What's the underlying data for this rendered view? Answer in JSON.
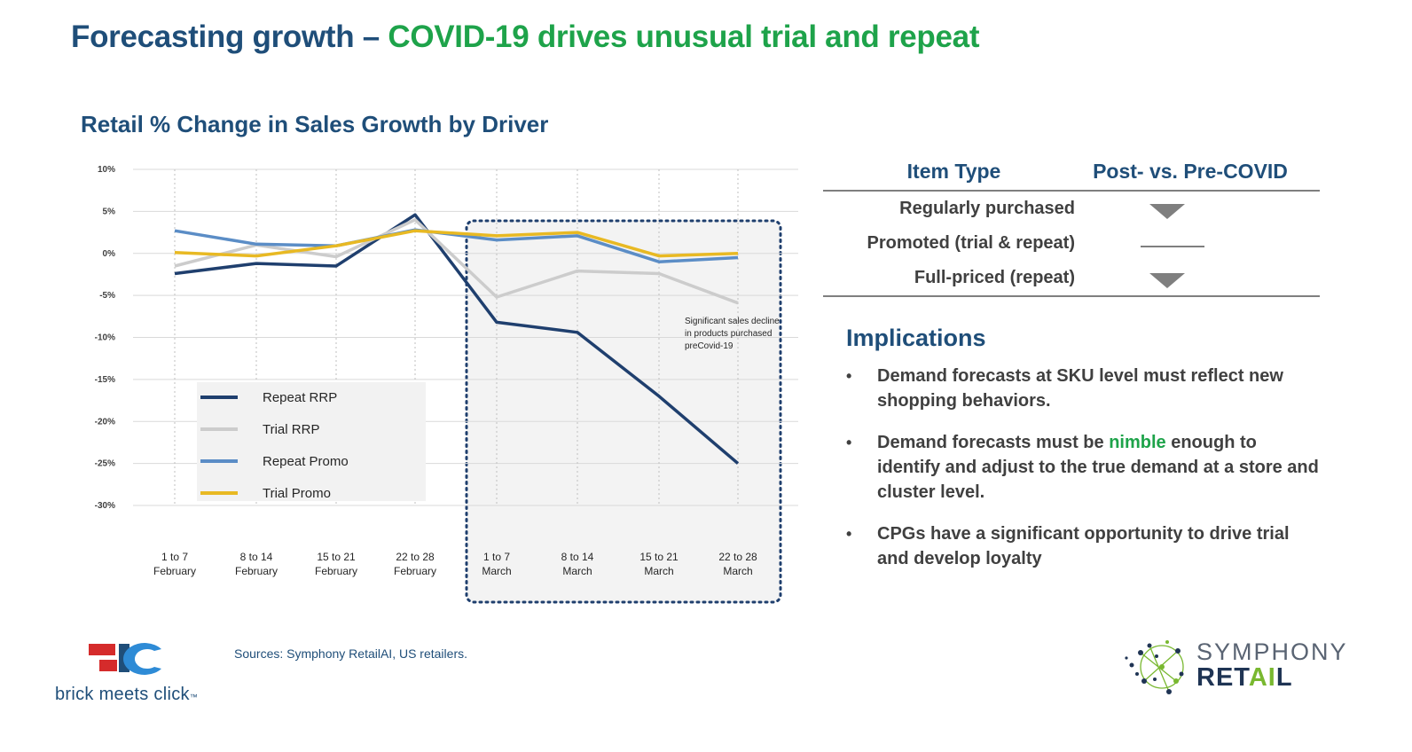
{
  "header": {
    "title_part_a": "Forecasting growth – ",
    "title_part_b": "COVID-19 drives unusual trial and repeat"
  },
  "chart_data": {
    "type": "line",
    "title": "Retail % Change in Sales Growth by Driver",
    "categories": [
      [
        "1 to 7",
        "February"
      ],
      [
        "8 to 14",
        "February"
      ],
      [
        "15 to 21",
        "February"
      ],
      [
        "22 to 28",
        "February"
      ],
      [
        "1 to 7",
        "March"
      ],
      [
        "8 to 14",
        "March"
      ],
      [
        "15 to 21",
        "March"
      ],
      [
        "22 to 28",
        "March"
      ]
    ],
    "y_ticks": [
      10,
      5,
      0,
      -5,
      -10,
      -15,
      -20,
      -25,
      -30
    ],
    "y_tick_labels": [
      "10%",
      "5%",
      "0%",
      "-5%",
      "-10%",
      "-15%",
      "-20%",
      "-25%",
      "-30%"
    ],
    "ylim": [
      -30,
      10
    ],
    "grid": true,
    "series": [
      {
        "name": "Repeat RRP",
        "color": "#1f3f6e",
        "values": [
          -2.4,
          -1.2,
          -1.5,
          4.6,
          -8.2,
          -9.4,
          -17.0,
          -25.0
        ]
      },
      {
        "name": "Trial RRP",
        "color": "#cccccc",
        "values": [
          -1.5,
          1.0,
          -0.4,
          4.0,
          -5.2,
          -2.1,
          -2.4,
          -5.9
        ]
      },
      {
        "name": "Repeat Promo",
        "color": "#5b8dc6",
        "values": [
          2.7,
          1.1,
          0.9,
          2.8,
          1.6,
          2.1,
          -1.0,
          -0.5
        ]
      },
      {
        "name": "Trial Promo",
        "color": "#e8b923",
        "values": [
          0.1,
          -0.3,
          0.9,
          2.7,
          2.1,
          2.5,
          -0.3,
          0.0
        ]
      }
    ],
    "legend_position": "lower-left",
    "highlight": {
      "from_category": 4,
      "to_category": 7
    },
    "annotation": [
      "Significant sales decline",
      "in products purchased",
      "preCovid-19"
    ]
  },
  "table": {
    "headers": [
      "Item Type",
      "Post- vs. Pre-COVID"
    ],
    "rows": [
      {
        "label": "Regularly purchased",
        "indicator": "down-triangle"
      },
      {
        "label": "Promoted (trial & repeat)",
        "indicator": "flat-line"
      },
      {
        "label": "Full-priced (repeat)",
        "indicator": "down-triangle"
      }
    ]
  },
  "implications": {
    "title": "Implications",
    "bullet1": "Demand forecasts at SKU level must reflect new shopping behaviors.",
    "bullet2_pre": "Demand forecasts must be ",
    "bullet2_em": "nimble",
    "bullet2_post": " enough to identify and adjust to the true demand at a store and cluster level.",
    "bullet3": "CPGs have a significant opportunity to drive trial and develop loyalty"
  },
  "footer": {
    "sources": "Sources: Symphony RetailAI, US retailers.",
    "bmc_logo_text": "brick meets click",
    "bmc_tm": "™",
    "symphony_line1": "SYMPHONY",
    "symphony_line2a": "RET",
    "symphony_line2b": "AI",
    "symphony_line2c": "L"
  },
  "colors": {
    "title_blue": "#1f4e79",
    "accent_green": "#1ea34a",
    "text_gray": "#404040"
  }
}
